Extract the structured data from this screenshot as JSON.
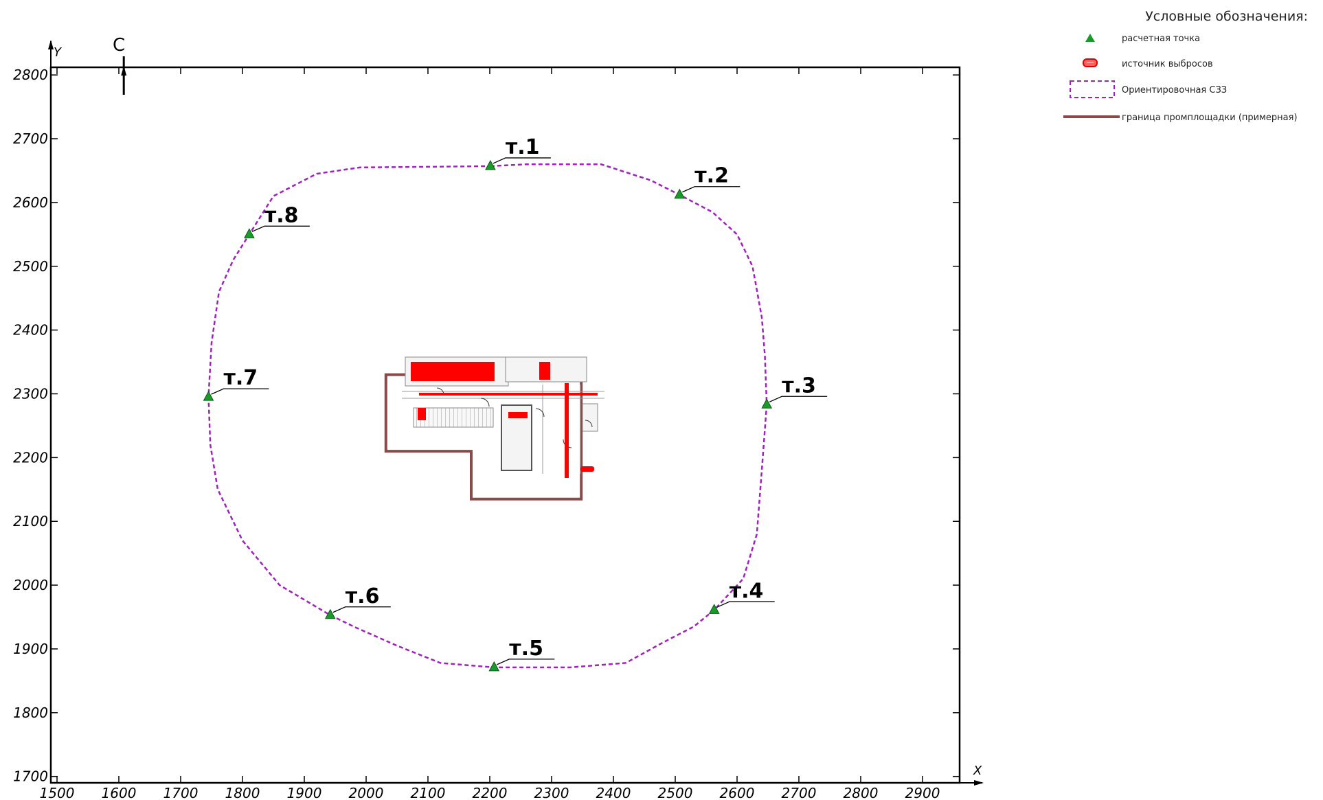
{
  "map": {
    "x_axis": {
      "name": "X",
      "ticks": [
        1500,
        1600,
        1700,
        1800,
        1900,
        2000,
        2100,
        2200,
        2300,
        2400,
        2500,
        2600,
        2700,
        2800,
        2900
      ],
      "range": [
        1490,
        2960
      ]
    },
    "y_axis": {
      "name": "Y",
      "ticks": [
        1700,
        1800,
        1900,
        2000,
        2100,
        2200,
        2300,
        2400,
        2500,
        2600,
        2700,
        2800
      ],
      "range": [
        1690,
        2812
      ]
    },
    "north_label": "С",
    "north_x": 1608,
    "colors": {
      "point": "#1a9a2a",
      "szz": "#a020c0",
      "source": "#ff0000",
      "boundary": "#8b4a4a"
    },
    "calc_points": [
      {
        "label": "т.1",
        "x": 2201,
        "y": 2657
      },
      {
        "label": "т.2",
        "x": 2507,
        "y": 2612
      },
      {
        "label": "т.3",
        "x": 2648,
        "y": 2283
      },
      {
        "label": "т.4",
        "x": 2563,
        "y": 1961
      },
      {
        "label": "т.5",
        "x": 2207,
        "y": 1871
      },
      {
        "label": "т.6",
        "x": 1942,
        "y": 1953
      },
      {
        "label": "т.7",
        "x": 1745,
        "y": 2295
      },
      {
        "label": "т.8",
        "x": 1811,
        "y": 2550
      }
    ],
    "szz_polygon": [
      [
        2201,
        2657
      ],
      [
        2260,
        2660
      ],
      [
        2380,
        2660
      ],
      [
        2460,
        2635
      ],
      [
        2507,
        2612
      ],
      [
        2560,
        2585
      ],
      [
        2600,
        2550
      ],
      [
        2625,
        2500
      ],
      [
        2640,
        2420
      ],
      [
        2645,
        2360
      ],
      [
        2648,
        2283
      ],
      [
        2640,
        2180
      ],
      [
        2632,
        2080
      ],
      [
        2610,
        2010
      ],
      [
        2563,
        1961
      ],
      [
        2530,
        1935
      ],
      [
        2480,
        1910
      ],
      [
        2420,
        1878
      ],
      [
        2330,
        1871
      ],
      [
        2207,
        1871
      ],
      [
        2120,
        1878
      ],
      [
        2050,
        1905
      ],
      [
        1980,
        1935
      ],
      [
        1942,
        1953
      ],
      [
        1860,
        2000
      ],
      [
        1800,
        2070
      ],
      [
        1760,
        2150
      ],
      [
        1748,
        2220
      ],
      [
        1745,
        2295
      ],
      [
        1750,
        2380
      ],
      [
        1762,
        2460
      ],
      [
        1785,
        2510
      ],
      [
        1811,
        2550
      ],
      [
        1850,
        2610
      ],
      [
        1920,
        2645
      ],
      [
        1990,
        2655
      ],
      [
        2100,
        2656
      ],
      [
        2201,
        2657
      ]
    ],
    "site_boundary": [
      [
        2032,
        2330
      ],
      [
        2348,
        2330
      ],
      [
        2348,
        2135
      ],
      [
        2170,
        2135
      ],
      [
        2170,
        2210
      ],
      [
        2032,
        2210
      ]
    ],
    "legend": {
      "title": "Условные обозначения:",
      "items": [
        {
          "key": "point",
          "label": "расчетная точка"
        },
        {
          "key": "source",
          "label": "источник выбросов"
        },
        {
          "key": "szz",
          "label": "Ориентировочная СЗЗ"
        },
        {
          "key": "boundary",
          "label": "граница промплощадки (примерная)"
        }
      ]
    }
  }
}
